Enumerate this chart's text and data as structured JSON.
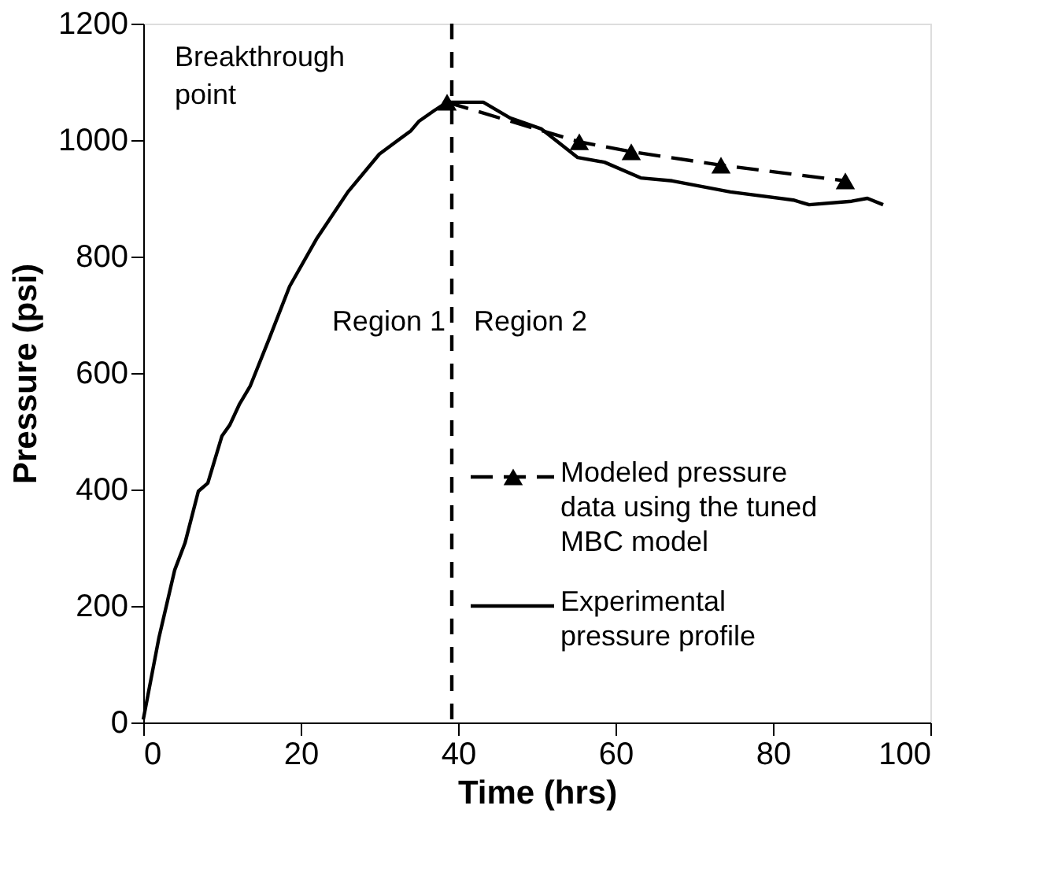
{
  "chart_data": {
    "type": "line",
    "xlabel": "Time (hrs)",
    "ylabel": "Pressure (psi)",
    "xlim": [
      0,
      100
    ],
    "xticks": [
      0,
      20,
      40,
      60,
      80,
      100
    ],
    "ylim": [
      0,
      1200
    ],
    "yticks": [
      0,
      200,
      400,
      600,
      800,
      1000,
      1200
    ],
    "grid": false,
    "legend": "bottom right",
    "series": [
      {
        "name": "Modeled pressure data using the tuned MBC model",
        "color": "#000000",
        "marker": "triangle",
        "line_style": "dashed",
        "x": [
          38.6,
          55.4,
          62,
          73.4,
          89.2
        ],
        "values": [
          1065,
          997,
          980,
          957,
          930
        ]
      },
      {
        "name": "Experimental pressure profile",
        "color": "#000000",
        "marker": "none",
        "line_style": "solid",
        "x": [
          0,
          2,
          4,
          5.3,
          7,
          8.2,
          10,
          11,
          12.2,
          13.6,
          16,
          18.6,
          22,
          26,
          30,
          34,
          35,
          37,
          38.6,
          43.2,
          46.6,
          50.6,
          55.2,
          58.6,
          63.2,
          67.2,
          74.6,
          82.6,
          84.6,
          90,
          92,
          94
        ],
        "values": [
          5,
          146,
          262,
          308,
          397,
          411,
          492,
          511,
          546,
          578,
          659,
          749,
          830,
          911,
          976,
          1016,
          1032,
          1051,
          1065,
          1065,
          1038,
          1019,
          970,
          962,
          935,
          930,
          911,
          897,
          889,
          895,
          900,
          889
        ]
      }
    ],
    "ref_lines": [
      {
        "axis": "x",
        "value": 39.2,
        "line_style": "dashed",
        "color": "#000000"
      }
    ],
    "annotations": [
      "Breakthrough point",
      "Region 1",
      "Region 2"
    ]
  }
}
